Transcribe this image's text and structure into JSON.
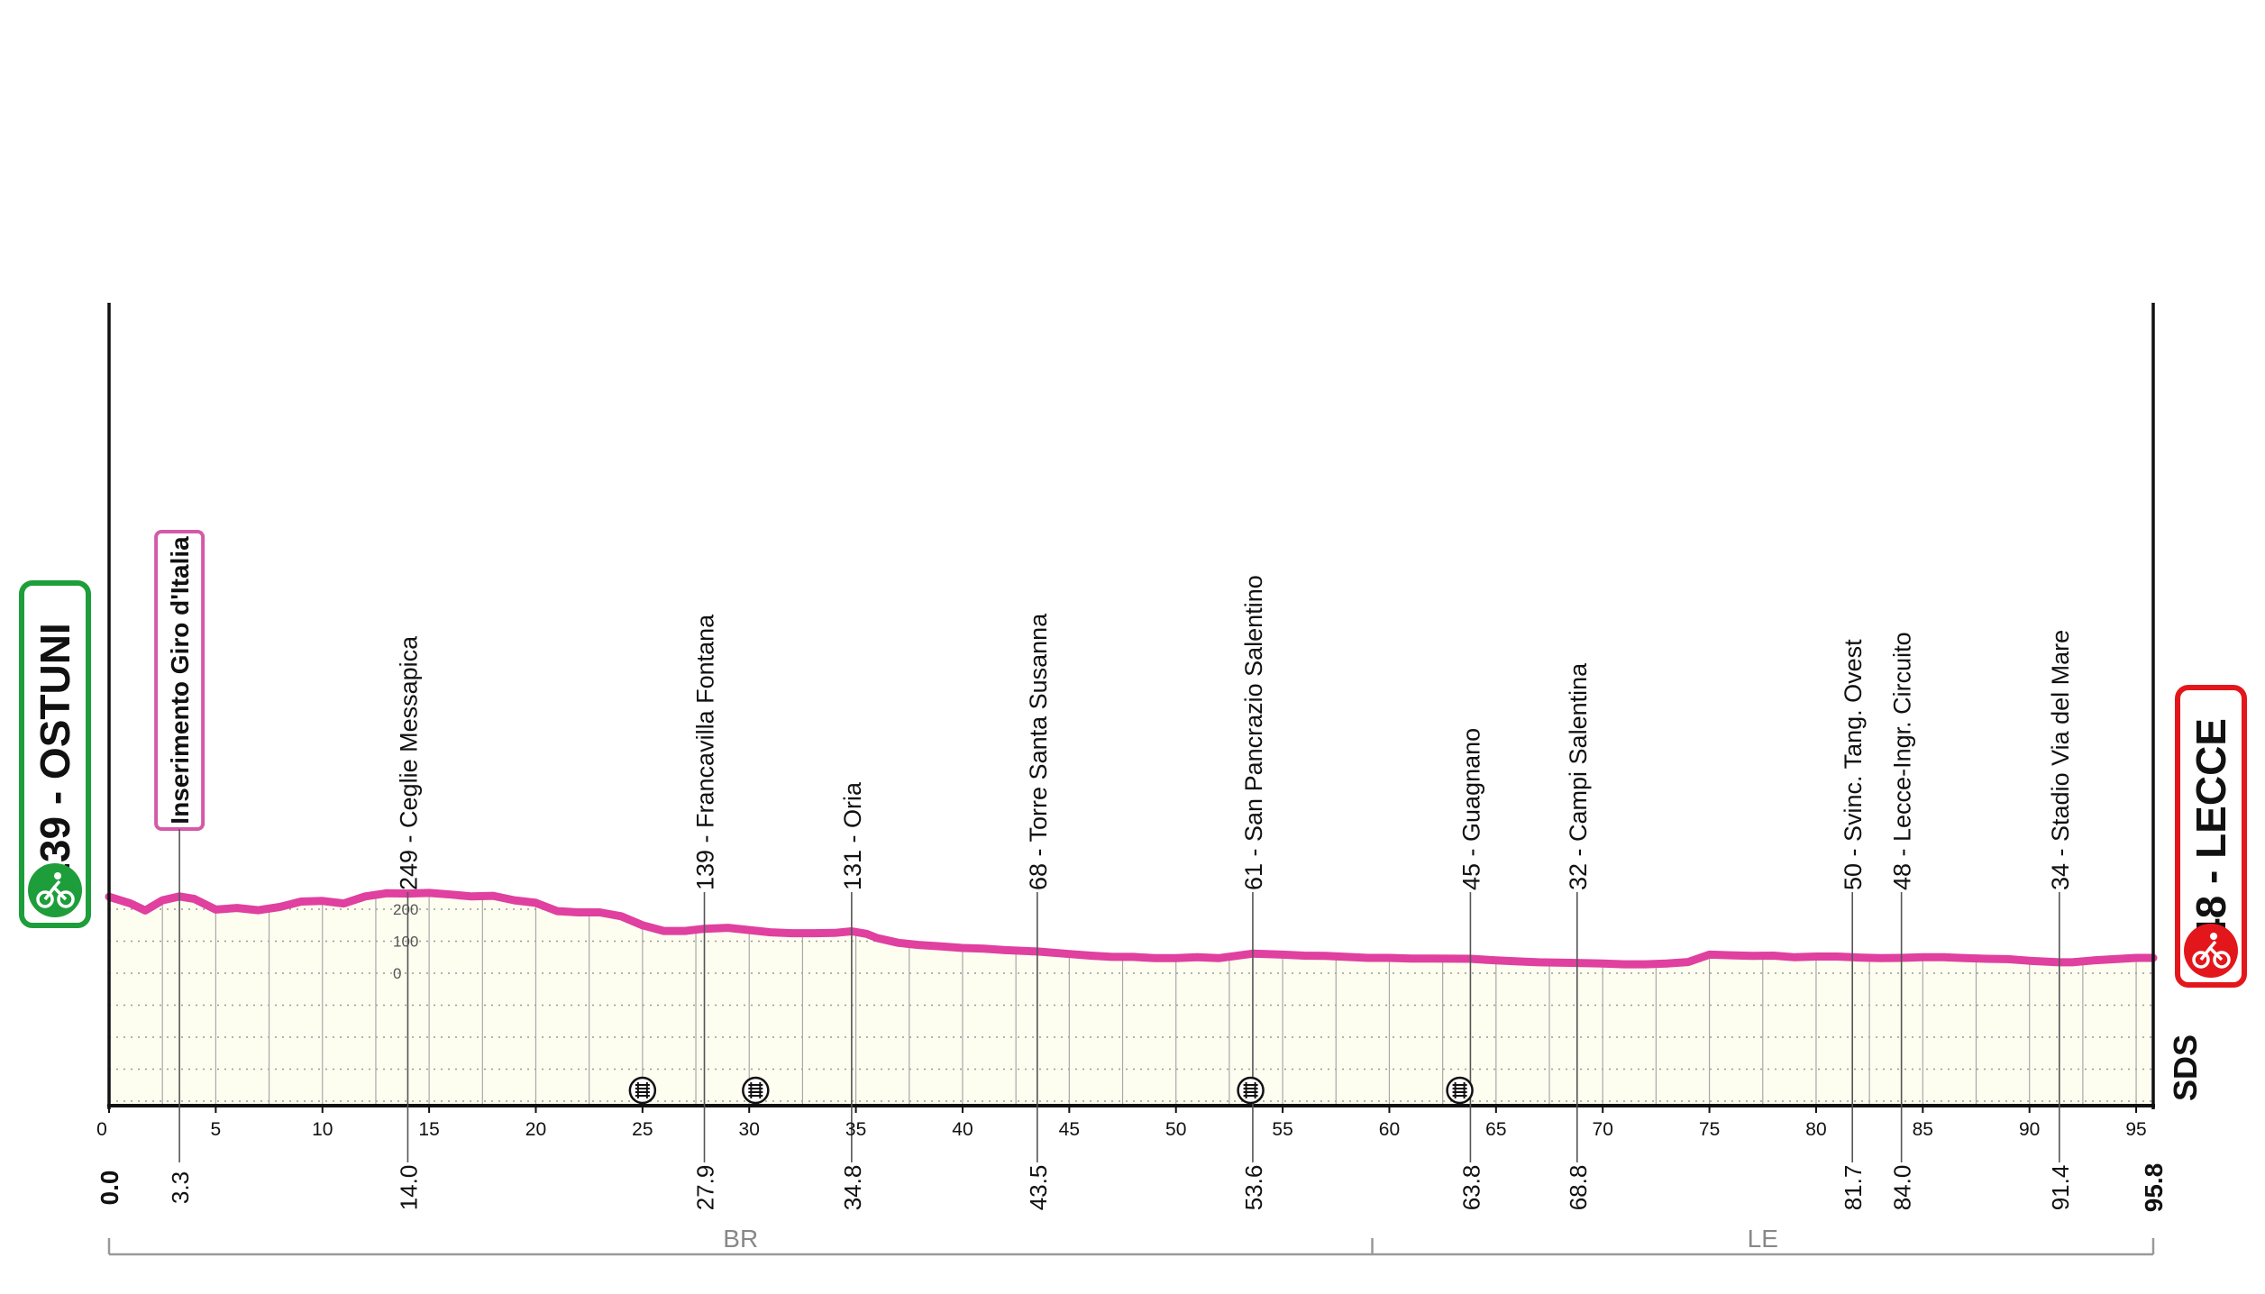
{
  "start": {
    "altitude": "239",
    "name": "OSTUNI",
    "label": "239 - OSTUNI",
    "color": "#1e9e3a"
  },
  "finish": {
    "altitude": "48",
    "name": "LECCE",
    "label": "48 - LECCE",
    "color": "#e3171b"
  },
  "colors": {
    "profile_line": "#e0409f",
    "profile_fill": "#fdfdf0",
    "axis": "#111111",
    "grid": "#9a9a9a",
    "intermediate_box": "#d45aa8"
  },
  "watermark": "SDS",
  "chart_data": {
    "type": "area",
    "title": "",
    "xlabel": "",
    "ylabel": "",
    "xlim": [
      0,
      95.8
    ],
    "ylim": [
      -300,
      700
    ],
    "grid": true,
    "x_ticks": [
      0,
      5,
      10,
      15,
      20,
      25,
      30,
      35,
      40,
      45,
      50,
      55,
      60,
      65,
      70,
      75,
      80,
      85,
      90,
      95
    ],
    "y_ticks": [
      200,
      100,
      0
    ],
    "total_distance": "95.8",
    "series": [
      {
        "points": [
          [
            0,
            239
          ],
          [
            1,
            218
          ],
          [
            1.7,
            196
          ],
          [
            2.5,
            228
          ],
          [
            3.3,
            240
          ],
          [
            4,
            232
          ],
          [
            5,
            199
          ],
          [
            6,
            204
          ],
          [
            7,
            197
          ],
          [
            8,
            207
          ],
          [
            9,
            224
          ],
          [
            10,
            226
          ],
          [
            11,
            218
          ],
          [
            12,
            240
          ],
          [
            13,
            250
          ],
          [
            14,
            249
          ],
          [
            15,
            251
          ],
          [
            16,
            246
          ],
          [
            17,
            240
          ],
          [
            18,
            242
          ],
          [
            19,
            228
          ],
          [
            20,
            220
          ],
          [
            21,
            194
          ],
          [
            22,
            190
          ],
          [
            23,
            190
          ],
          [
            24,
            178
          ],
          [
            25,
            150
          ],
          [
            26,
            132
          ],
          [
            27,
            132
          ],
          [
            27.9,
            139
          ],
          [
            29,
            142
          ],
          [
            30,
            135
          ],
          [
            31,
            128
          ],
          [
            32,
            125
          ],
          [
            33,
            125
          ],
          [
            34,
            126
          ],
          [
            34.8,
            131
          ],
          [
            35.5,
            123
          ],
          [
            36,
            110
          ],
          [
            37,
            95
          ],
          [
            38,
            88
          ],
          [
            39,
            84
          ],
          [
            40,
            79
          ],
          [
            41,
            77
          ],
          [
            42,
            72
          ],
          [
            43.5,
            68
          ],
          [
            45,
            60
          ],
          [
            46,
            55
          ],
          [
            47,
            51
          ],
          [
            48,
            51
          ],
          [
            49,
            47
          ],
          [
            50,
            47
          ],
          [
            51,
            50
          ],
          [
            52,
            47
          ],
          [
            53.6,
            61
          ],
          [
            55,
            58
          ],
          [
            56,
            55
          ],
          [
            57,
            54
          ],
          [
            58,
            51
          ],
          [
            59,
            48
          ],
          [
            60,
            48
          ],
          [
            61,
            46
          ],
          [
            62,
            46
          ],
          [
            63.8,
            45
          ],
          [
            65,
            40
          ],
          [
            66,
            37
          ],
          [
            67,
            34
          ],
          [
            68.8,
            32
          ],
          [
            70,
            30
          ],
          [
            71,
            28
          ],
          [
            72,
            28
          ],
          [
            73,
            30
          ],
          [
            74,
            35
          ],
          [
            75,
            58
          ],
          [
            76,
            56
          ],
          [
            77,
            54
          ],
          [
            78,
            55
          ],
          [
            79,
            50
          ],
          [
            80,
            52
          ],
          [
            81,
            52
          ],
          [
            81.7,
            50
          ],
          [
            82,
            49
          ],
          [
            83,
            47
          ],
          [
            84,
            48
          ],
          [
            85,
            50
          ],
          [
            86,
            50
          ],
          [
            87,
            47
          ],
          [
            88,
            45
          ],
          [
            89,
            44
          ],
          [
            90,
            39
          ],
          [
            91.4,
            34
          ],
          [
            92,
            34
          ],
          [
            93,
            40
          ],
          [
            94,
            44
          ],
          [
            95,
            48
          ],
          [
            95.8,
            48
          ]
        ]
      }
    ],
    "waypoints": [
      {
        "km": 3.3,
        "km_label": "3.3",
        "label": "Inserimento Giro d'Italia",
        "boxed": true
      },
      {
        "km": 14.0,
        "km_label": "14.0",
        "label": "249 - Ceglie Messapica"
      },
      {
        "km": 27.9,
        "km_label": "27.9",
        "label": "139 - Francavilla Fontana"
      },
      {
        "km": 34.8,
        "km_label": "34.8",
        "label": "131 - Oria"
      },
      {
        "km": 43.5,
        "km_label": "43.5",
        "label": "68 - Torre Santa Susanna"
      },
      {
        "km": 53.6,
        "km_label": "53.6",
        "label": "61 - San Pancrazio Salentino"
      },
      {
        "km": 63.8,
        "km_label": "63.8",
        "label": "45 - Guagnano"
      },
      {
        "km": 68.8,
        "km_label": "68.8",
        "label": "32 - Campi Salentina"
      },
      {
        "km": 81.7,
        "km_label": "81.7",
        "label": "50 - Svinc. Tang. Ovest"
      },
      {
        "km": 84.0,
        "km_label": "84.0",
        "label": "48 - Lecce-Ingr. Circuito"
      },
      {
        "km": 91.4,
        "km_label": "91.4",
        "label": "34 - Stadio Via del Mare"
      }
    ],
    "level_crossings": [
      25,
      30.3,
      53.5,
      63.3
    ],
    "provinces": [
      {
        "label": "BR",
        "from": 0,
        "to": 59.2
      },
      {
        "label": "LE",
        "from": 59.2,
        "to": 95.8
      }
    ]
  }
}
